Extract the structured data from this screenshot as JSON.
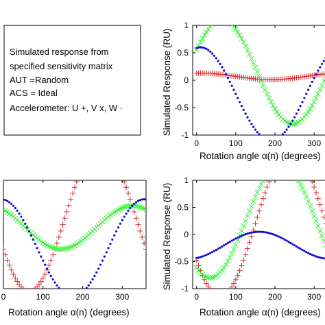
{
  "info_box": {
    "lines": [
      "Simulated response from",
      "specified sensitivity matrix",
      "AUT =Random",
      "ACS = Ideal",
      "Accelerometer: U +, V x, W ·"
    ]
  },
  "colors": {
    "U": "#d62728",
    "V": "#33ee33",
    "W": "#0a0ad0"
  },
  "chart_data": [
    {
      "id": "top-right",
      "type": "scatter",
      "xlabel": "Rotation angle α(n) (degrees)",
      "ylabel": "Simulated Response (RU)",
      "xlim": [
        -10,
        340
      ],
      "ylim": [
        -1,
        1
      ],
      "xticks": [
        0,
        100,
        200,
        300
      ],
      "yticks": [
        -1,
        -0.5,
        0,
        0.5,
        1
      ],
      "x": {
        "start": 0,
        "end": 360,
        "step": 5
      },
      "series": [
        {
          "key": "U",
          "marker": "+",
          "model": {
            "offset": 0.07,
            "amplitude": 0.06,
            "peak_angle": 10
          }
        },
        {
          "key": "V",
          "marker": "x",
          "model": {
            "offset": 0.15,
            "amplitude": 0.95,
            "peak_angle": 65
          }
        },
        {
          "key": "W",
          "marker": "dot",
          "model": {
            "offset": -0.25,
            "amplitude": 0.85,
            "peak_angle": 10
          }
        }
      ]
    },
    {
      "id": "bottom-left",
      "type": "scatter",
      "xlabel": "Rotation angle α(n) (degrees)",
      "ylabel": "",
      "xlim": [
        0,
        360
      ],
      "ylim": [
        -1,
        1
      ],
      "xticks": [
        0,
        100,
        200,
        300
      ],
      "yticks": [],
      "x": {
        "start": 0,
        "end": 360,
        "step": 5
      },
      "series": [
        {
          "key": "U",
          "marker": "+",
          "model": {
            "offset": 0.3,
            "amplitude": 1.35,
            "peak_angle": 245
          }
        },
        {
          "key": "V",
          "marker": "x",
          "model": {
            "offset": 0.13,
            "amplitude": 0.4,
            "peak_angle": 325
          }
        },
        {
          "key": "W",
          "marker": "dot",
          "model": {
            "offset": -0.25,
            "amplitude": 0.9,
            "peak_angle": 355
          }
        }
      ]
    },
    {
      "id": "bottom-right",
      "type": "scatter",
      "xlabel": "Rotation angle α(n) (degrees)",
      "ylabel": "Simulated Response (RU)",
      "xlim": [
        -10,
        340
      ],
      "ylim": [
        -1,
        1
      ],
      "xticks": [
        0,
        100,
        200,
        300
      ],
      "yticks": [
        -1,
        -0.5,
        0,
        0.5,
        1
      ],
      "x": {
        "start": 0,
        "end": 360,
        "step": 5
      },
      "series": [
        {
          "key": "U",
          "marker": "+",
          "model": {
            "offset": 0.2,
            "amplitude": 1.35,
            "peak_angle": 240
          }
        },
        {
          "key": "V",
          "marker": "x",
          "model": {
            "offset": 0.25,
            "amplitude": 1.05,
            "peak_angle": 215
          }
        },
        {
          "key": "W",
          "marker": "dot",
          "model": {
            "offset": -0.2,
            "amplitude": 0.25,
            "peak_angle": 160
          }
        }
      ]
    }
  ]
}
